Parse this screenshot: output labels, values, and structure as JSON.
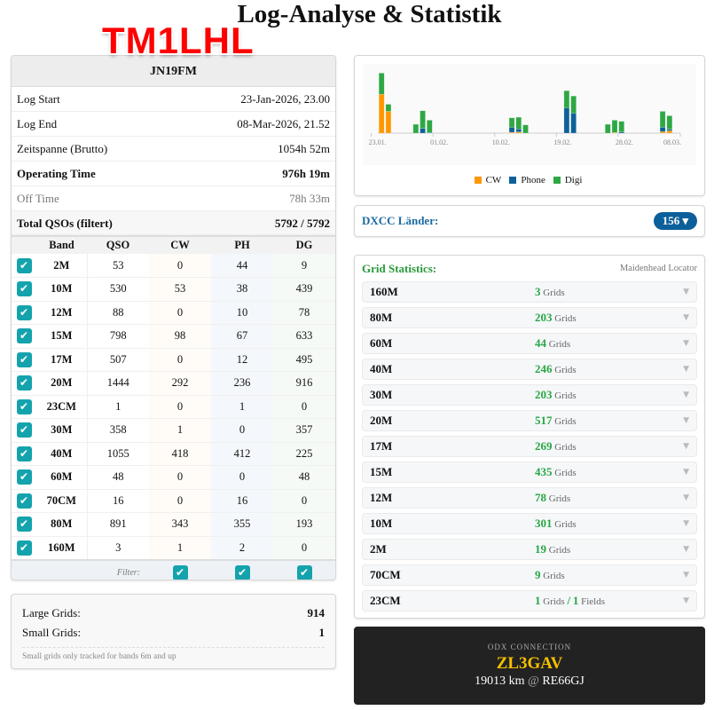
{
  "page": {
    "title": "Log-Analyse & Statistik",
    "callsign": "TM1LHL"
  },
  "summary": {
    "locator": "JN19FM",
    "rows": [
      {
        "label": "Log Start",
        "value": "23-Jan-2026, 23.00"
      },
      {
        "label": "Log End",
        "value": "08-Mar-2026, 21.52"
      },
      {
        "label": "Zeitspanne (Brutto)",
        "value": "1054h 52m"
      },
      {
        "label": "Operating Time",
        "value": "976h 19m"
      },
      {
        "label": "Off Time",
        "value": "78h 33m"
      },
      {
        "label": "Total QSOs (filtert)",
        "value": "5792 / 5792"
      }
    ]
  },
  "bands": {
    "headers": [
      "Band",
      "QSO",
      "CW",
      "PH",
      "DG"
    ],
    "rows": [
      [
        "2M",
        "53",
        "0",
        "44",
        "9"
      ],
      [
        "10M",
        "530",
        "53",
        "38",
        "439"
      ],
      [
        "12M",
        "88",
        "0",
        "10",
        "78"
      ],
      [
        "15M",
        "798",
        "98",
        "67",
        "633"
      ],
      [
        "17M",
        "507",
        "0",
        "12",
        "495"
      ],
      [
        "20M",
        "1444",
        "292",
        "236",
        "916"
      ],
      [
        "23CM",
        "1",
        "0",
        "1",
        "0"
      ],
      [
        "30M",
        "358",
        "1",
        "0",
        "357"
      ],
      [
        "40M",
        "1055",
        "418",
        "412",
        "225"
      ],
      [
        "60M",
        "48",
        "0",
        "0",
        "48"
      ],
      [
        "70CM",
        "16",
        "0",
        "16",
        "0"
      ],
      [
        "80M",
        "891",
        "343",
        "355",
        "193"
      ],
      [
        "160M",
        "3",
        "1",
        "2",
        "0"
      ]
    ],
    "filter_label": "Filter:",
    "checked": true
  },
  "grid_summary": {
    "large_label": "Large Grids:",
    "large": "914",
    "small_label": "Small Grids:",
    "small": "1",
    "note": "Small grids only tracked for bands 6m and up"
  },
  "chart_data": {
    "type": "bar",
    "stacked": true,
    "xlabel": "",
    "ylabel": "",
    "x_ticks": [
      "23.01.",
      "01.02.",
      "10.02.",
      "19.02.",
      "28.02.",
      "08.03."
    ],
    "categories": [
      "24.01.",
      "25.01.",
      "29.01.",
      "30.01.",
      "31.01.",
      "12.02.",
      "13.02.",
      "14.02.",
      "20.02.",
      "21.02.",
      "26.02.",
      "27.02.",
      "28.02.",
      "06.03.",
      "07.03."
    ],
    "series": [
      {
        "name": "CW",
        "color": "#ff9800",
        "values": [
          132,
          74,
          0,
          0,
          0,
          3,
          4,
          0,
          0,
          0,
          0,
          2,
          0,
          5,
          8
        ]
      },
      {
        "name": "Phone",
        "color": "#0d6199",
        "values": [
          0,
          0,
          0,
          16,
          2,
          17,
          10,
          0,
          86,
          68,
          0,
          0,
          4,
          15,
          5
        ]
      },
      {
        "name": "Digi",
        "color": "#2ea844",
        "values": [
          72,
          24,
          30,
          60,
          42,
          32,
          40,
          28,
          58,
          58,
          30,
          42,
          36,
          54,
          46
        ]
      }
    ],
    "ylim": [
      0,
      220
    ],
    "grid": false,
    "legend": "bottom"
  },
  "dxcc": {
    "label": "DXCC Länder:",
    "count": "156 ▾"
  },
  "grid_stats": {
    "title": "Grid Statistics:",
    "subtitle": "Maidenhead Locator",
    "unit": "Grids",
    "rows": [
      {
        "band": "160M",
        "grids": "3"
      },
      {
        "band": "80M",
        "grids": "203"
      },
      {
        "band": "60M",
        "grids": "44"
      },
      {
        "band": "40M",
        "grids": "246"
      },
      {
        "band": "30M",
        "grids": "203"
      },
      {
        "band": "20M",
        "grids": "517"
      },
      {
        "band": "17M",
        "grids": "269"
      },
      {
        "band": "15M",
        "grids": "435"
      },
      {
        "band": "12M",
        "grids": "78"
      },
      {
        "band": "10M",
        "grids": "301"
      },
      {
        "band": "2M",
        "grids": "19"
      },
      {
        "band": "70CM",
        "grids": "9"
      },
      {
        "band": "23CM",
        "grids": "1",
        "fields": "1",
        "fields_unit": "Fields"
      }
    ]
  },
  "odx": {
    "label": "ODX CONNECTION",
    "call": "ZL3GAV",
    "distance": "19013 km",
    "at": "@",
    "locator": "RE66GJ"
  }
}
